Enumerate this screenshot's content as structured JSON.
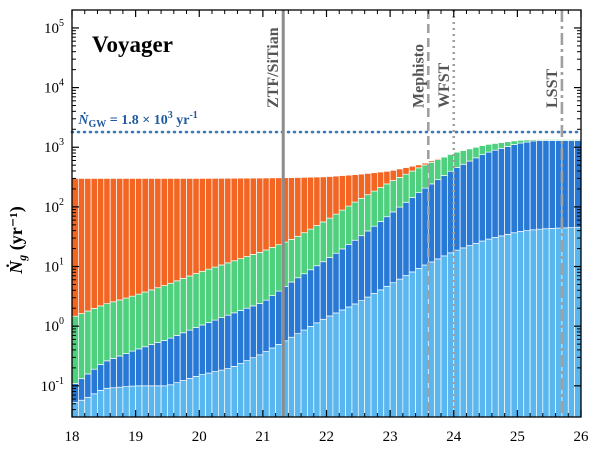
{
  "chart_data": {
    "type": "bar",
    "title": "Voyager",
    "ylabel": "Ṅg (yr⁻¹)",
    "ylabel_text": "(yr⁻¹)",
    "ylabel_symbol": "N",
    "ylabel_sub": "g",
    "xlabel": "",
    "xlim": [
      18,
      26
    ],
    "ylim": [
      0.03,
      200000
    ],
    "yscale": "log",
    "stacked": true,
    "xticks": [
      "18",
      "19",
      "20",
      "21",
      "22",
      "23",
      "24",
      "25",
      "26"
    ],
    "yticks": [
      {
        "base": "10",
        "exp": "-1",
        "value": 0.1
      },
      {
        "base": "10",
        "exp": "0",
        "value": 1
      },
      {
        "base": "10",
        "exp": "1",
        "value": 10
      },
      {
        "base": "10",
        "exp": "2",
        "value": 100
      },
      {
        "base": "10",
        "exp": "3",
        "value": 1000
      },
      {
        "base": "10",
        "exp": "4",
        "value": 10000
      },
      {
        "base": "10",
        "exp": "5",
        "value": 100000
      }
    ],
    "bin_width": 0.1,
    "series_colors": [
      "#59b6ee",
      "#2878d6",
      "#4fd07e",
      "#f26522"
    ],
    "boundary_points": [
      {
        "x": [
          18.0,
          18.2,
          18.5,
          19.0,
          19.5,
          20.0,
          20.5,
          21.0,
          21.5,
          22.0,
          22.5,
          23.0,
          23.5,
          24.0,
          24.5,
          25.0,
          25.3,
          25.6,
          25.9
        ],
        "y": [
          0.05,
          0.06,
          0.09,
          0.1,
          0.1,
          0.15,
          0.2,
          0.35,
          0.7,
          1.4,
          2.5,
          5,
          10,
          18,
          28,
          38,
          42,
          44,
          45
        ]
      },
      {
        "x": [
          18.0,
          18.5,
          19.0,
          19.5,
          20.0,
          20.5,
          21.0,
          21.5,
          22.0,
          22.5,
          23.0,
          23.5,
          24.0,
          24.5,
          25.0,
          25.3,
          25.6,
          25.9
        ],
        "y": [
          0.1,
          0.25,
          0.4,
          0.6,
          1.0,
          1.6,
          2.5,
          6,
          13,
          30,
          75,
          190,
          430,
          800,
          1150,
          1300,
          1300,
          1300
        ]
      },
      {
        "x": [
          18.0,
          18.5,
          19.0,
          19.5,
          20.0,
          20.5,
          21.0,
          21.5,
          22.0,
          22.5,
          23.0,
          23.5,
          24.0,
          24.5,
          25.0,
          25.3,
          25.6,
          25.9
        ],
        "y": [
          1.4,
          2.3,
          3.3,
          5,
          8,
          12,
          18,
          30,
          60,
          130,
          260,
          480,
          800,
          1100,
          1300,
          1350,
          1350,
          1350
        ]
      },
      {
        "x": [
          18.0,
          20.0,
          21.0,
          21.5,
          22.0,
          22.5,
          23.0,
          23.5,
          24.0,
          24.5,
          25.0,
          25.3,
          25.6,
          25.9
        ],
        "y": [
          300,
          300,
          305,
          310,
          320,
          350,
          400,
          520,
          800,
          1100,
          1300,
          1350,
          1350,
          1350
        ]
      }
    ],
    "reference_line": {
      "y": 1800,
      "label_pre": "Ṅ",
      "label_sub": "GW",
      "label_post": " = 1.8 × 10",
      "label_exp": "3",
      "label_unit": " yr",
      "label_unit_exp": "-1",
      "color": "#3a78b8"
    },
    "vertical_lines": [
      {
        "x": 21.32,
        "label": "ZTF/SiTian",
        "style": "solid",
        "color": "#8c8c8c"
      },
      {
        "x": 23.6,
        "label": "Mephisto",
        "style": "dashed",
        "color": "#a0a0a0"
      },
      {
        "x": 24.0,
        "label": "WFST",
        "style": "dotted",
        "color": "#a0a0a0"
      },
      {
        "x": 25.7,
        "label": "LSST",
        "style": "dashdot",
        "color": "#a0a0a0"
      }
    ]
  }
}
